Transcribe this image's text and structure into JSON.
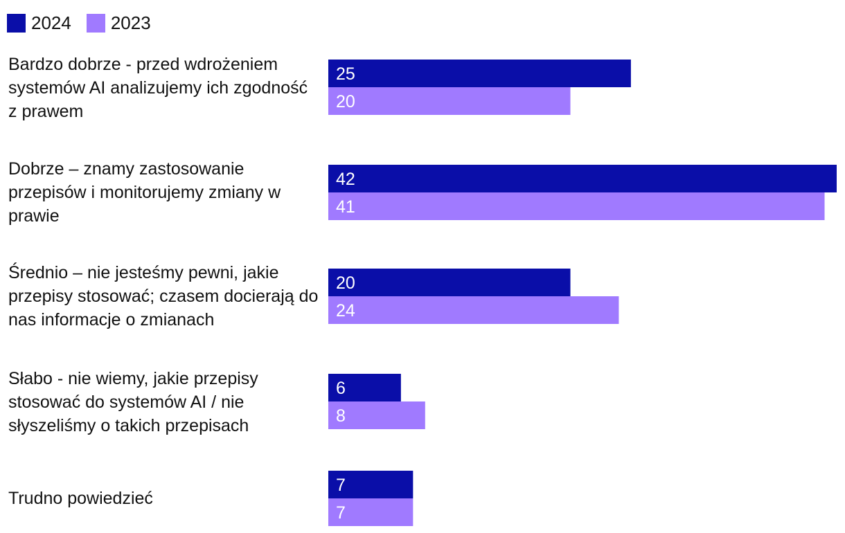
{
  "chart_data": {
    "type": "bar",
    "orientation": "horizontal",
    "title": "",
    "xlabel": "",
    "ylabel": "",
    "xlim": [
      0,
      42
    ],
    "grid": false,
    "legend_position": "top-left",
    "categories": [
      "Bardzo dobrze - przed wdrożeniem systemów AI analizujemy ich zgodność z prawem",
      "Dobrze – znamy zastosowanie przepisów i monitorujemy zmiany w prawie",
      "Średnio – nie jesteśmy pewni, jakie przepisy stosować; czasem docierają do nas informacje o zmianach",
      "Słabo - nie wiemy, jakie przepisy stosować do systemów AI / nie słyszeliśmy o takich przepisach",
      "Trudno powiedzieć"
    ],
    "series": [
      {
        "name": "2024",
        "color": "#0a0ea8",
        "values": [
          25,
          42,
          20,
          6,
          7
        ]
      },
      {
        "name": "2023",
        "color": "#a07aff",
        "values": [
          20,
          41,
          24,
          8,
          7
        ]
      }
    ],
    "data_label_color": "#ffffff"
  }
}
